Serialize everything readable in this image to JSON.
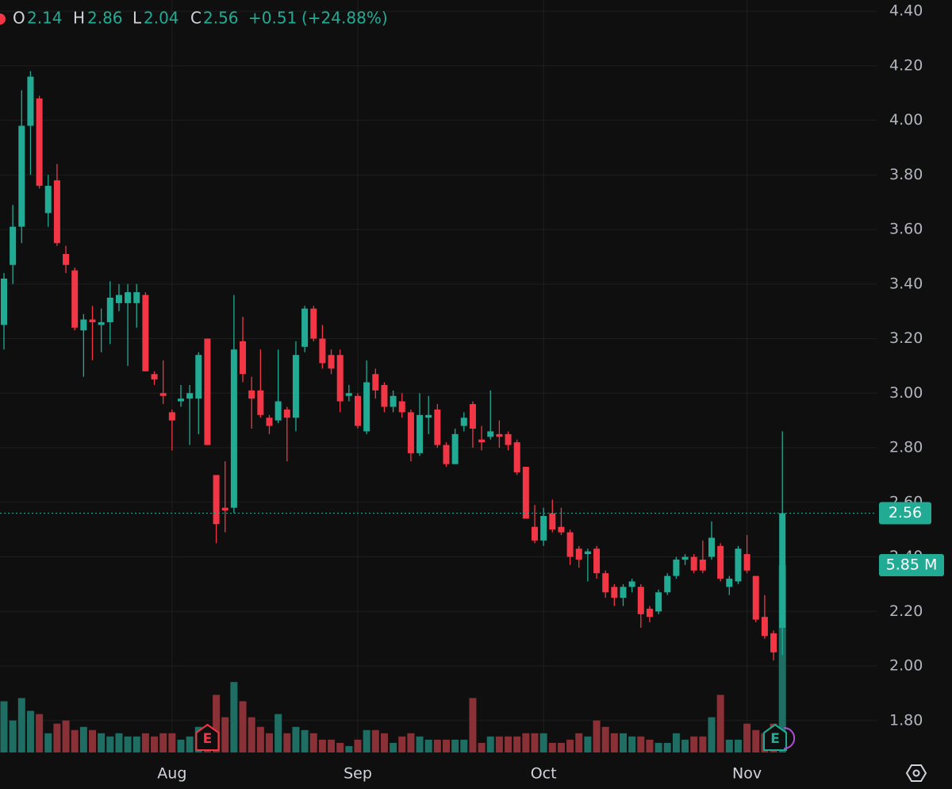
{
  "chart_data": {
    "type": "candlestick",
    "header": {
      "ohlc": [
        {
          "label": "O",
          "value": 2.14
        },
        {
          "label": "H",
          "value": 2.86
        },
        {
          "label": "L",
          "value": 2.04
        },
        {
          "label": "C",
          "value": 2.56
        }
      ],
      "change": {
        "value": 0.51,
        "label": "+0.51"
      },
      "change_pct": {
        "value": 24.88,
        "label": "(+24.88%)"
      }
    },
    "categories": [
      null,
      null,
      null,
      null,
      null,
      null,
      null,
      null,
      null,
      null,
      null,
      null,
      null,
      null,
      null,
      null,
      null,
      null,
      null,
      "Aug",
      null,
      null,
      null,
      null,
      null,
      null,
      null,
      null,
      null,
      null,
      null,
      null,
      null,
      null,
      null,
      null,
      null,
      null,
      null,
      null,
      "Sep",
      null,
      null,
      null,
      null,
      null,
      null,
      null,
      null,
      null,
      null,
      null,
      null,
      null,
      null,
      null,
      null,
      null,
      null,
      null,
      null,
      "Oct",
      null,
      null,
      null,
      null,
      null,
      null,
      null,
      null,
      null,
      null,
      null,
      null,
      null,
      null,
      null,
      null,
      null,
      null,
      null,
      null,
      null,
      null,
      "Nov",
      null,
      null,
      null,
      null
    ],
    "open": [
      3.25,
      3.47,
      3.61,
      3.98,
      4.08,
      3.66,
      3.78,
      3.51,
      3.45,
      3.23,
      3.27,
      3.25,
      3.26,
      3.33,
      3.33,
      3.33,
      3.36,
      3.07,
      3.0,
      2.93,
      2.97,
      2.98,
      2.98,
      3.2,
      2.7,
      2.58,
      2.58,
      3.19,
      3.01,
      3.01,
      2.91,
      2.9,
      2.94,
      2.91,
      3.17,
      3.31,
      3.2,
      3.14,
      3.14,
      2.99,
      2.99,
      2.86,
      3.07,
      3.03,
      2.95,
      2.97,
      2.93,
      2.78,
      2.91,
      2.94,
      2.81,
      2.74,
      2.88,
      2.96,
      2.83,
      2.84,
      2.85,
      2.85,
      2.82,
      2.73,
      2.51,
      2.46,
      2.56,
      2.51,
      2.49,
      2.43,
      2.41,
      2.43,
      2.34,
      2.29,
      2.25,
      2.29,
      2.29,
      2.21,
      2.2,
      2.27,
      2.33,
      2.39,
      2.4,
      2.39,
      2.4,
      2.44,
      2.29,
      2.31,
      2.41,
      2.33,
      2.18,
      2.12,
      2.14
    ],
    "high": [
      3.44,
      3.69,
      4.11,
      4.18,
      4.09,
      3.8,
      3.84,
      3.54,
      3.46,
      3.29,
      3.32,
      3.31,
      3.41,
      3.4,
      3.4,
      3.4,
      3.37,
      3.08,
      3.12,
      2.94,
      3.03,
      3.03,
      3.15,
      3.2,
      2.7,
      2.75,
      3.36,
      3.28,
      3.06,
      3.16,
      2.92,
      3.16,
      2.95,
      3.19,
      3.32,
      3.32,
      3.25,
      3.16,
      3.16,
      3.03,
      3.0,
      3.12,
      3.09,
      3.04,
      3.01,
      3.0,
      2.94,
      3.0,
      2.99,
      2.96,
      2.82,
      2.87,
      2.93,
      2.97,
      2.88,
      3.01,
      2.9,
      2.86,
      2.83,
      2.73,
      2.59,
      2.58,
      2.61,
      2.58,
      2.5,
      2.44,
      2.43,
      2.44,
      2.35,
      2.3,
      2.3,
      2.32,
      2.3,
      2.22,
      2.28,
      2.34,
      2.4,
      2.41,
      2.41,
      2.46,
      2.53,
      2.45,
      2.33,
      2.44,
      2.48,
      2.33,
      2.26,
      2.13,
      2.86
    ],
    "low": [
      3.16,
      3.4,
      3.55,
      3.8,
      3.75,
      3.61,
      3.54,
      3.44,
      3.23,
      3.06,
      3.12,
      3.15,
      3.18,
      3.3,
      3.1,
      3.24,
      3.08,
      3.03,
      2.96,
      2.79,
      2.95,
      2.81,
      2.85,
      2.81,
      2.45,
      2.49,
      2.56,
      3.04,
      2.87,
      2.91,
      2.85,
      2.89,
      2.75,
      2.86,
      3.15,
      3.19,
      3.09,
      3.07,
      2.93,
      2.97,
      2.87,
      2.85,
      2.98,
      2.93,
      2.93,
      2.91,
      2.75,
      2.77,
      2.85,
      2.8,
      2.73,
      2.74,
      2.86,
      2.8,
      2.79,
      2.83,
      2.8,
      2.79,
      2.7,
      2.54,
      2.45,
      2.44,
      2.49,
      2.48,
      2.37,
      2.36,
      2.31,
      2.32,
      2.25,
      2.22,
      2.22,
      2.27,
      2.14,
      2.16,
      2.19,
      2.26,
      2.32,
      2.37,
      2.34,
      2.34,
      2.39,
      2.31,
      2.26,
      2.3,
      2.34,
      2.16,
      2.1,
      2.02,
      2.04
    ],
    "close": [
      3.42,
      3.61,
      3.98,
      4.16,
      3.76,
      3.76,
      3.55,
      3.47,
      3.24,
      3.27,
      3.26,
      3.26,
      3.35,
      3.36,
      3.37,
      3.37,
      3.08,
      3.05,
      2.99,
      2.9,
      2.98,
      3.0,
      3.14,
      2.81,
      2.52,
      2.57,
      3.16,
      3.07,
      2.98,
      2.92,
      2.88,
      2.97,
      2.91,
      3.14,
      3.31,
      3.2,
      3.11,
      3.09,
      2.97,
      3.0,
      2.88,
      3.04,
      3.01,
      2.95,
      2.99,
      2.93,
      2.78,
      2.92,
      2.92,
      2.81,
      2.74,
      2.85,
      2.91,
      2.87,
      2.82,
      2.86,
      2.84,
      2.81,
      2.71,
      2.54,
      2.46,
      2.55,
      2.5,
      2.49,
      2.4,
      2.39,
      2.42,
      2.34,
      2.27,
      2.25,
      2.29,
      2.31,
      2.19,
      2.18,
      2.27,
      2.33,
      2.39,
      2.4,
      2.35,
      2.35,
      2.47,
      2.32,
      2.32,
      2.43,
      2.35,
      2.17,
      2.11,
      2.05,
      2.56
    ],
    "volume": [
      1.6,
      1.0,
      1.7,
      1.3,
      1.2,
      0.6,
      0.9,
      1.0,
      0.7,
      0.8,
      0.7,
      0.6,
      0.5,
      0.6,
      0.5,
      0.5,
      0.6,
      0.5,
      0.6,
      0.6,
      0.4,
      0.5,
      0.8,
      0.8,
      1.8,
      1.1,
      2.2,
      1.6,
      1.1,
      0.8,
      0.6,
      1.2,
      0.6,
      0.8,
      0.7,
      0.6,
      0.4,
      0.4,
      0.3,
      0.2,
      0.4,
      0.7,
      0.7,
      0.6,
      0.3,
      0.5,
      0.6,
      0.5,
      0.4,
      0.4,
      0.4,
      0.4,
      0.4,
      1.7,
      0.3,
      0.5,
      0.5,
      0.5,
      0.5,
      0.6,
      0.6,
      0.6,
      0.3,
      0.3,
      0.4,
      0.6,
      0.5,
      1.0,
      0.8,
      0.6,
      0.6,
      0.5,
      0.5,
      0.4,
      0.3,
      0.3,
      0.6,
      0.4,
      0.5,
      0.5,
      1.1,
      1.8,
      0.4,
      0.4,
      0.9,
      0.7,
      0.6,
      0.9,
      5.85
    ],
    "up_color": "#22ab94",
    "down_color": "#f23645",
    "volume_up_color": "#1f6e63",
    "volume_down_color": "#8a3137",
    "ylim": [
      1.683,
      4.441
    ],
    "volume_lim": [
      0,
      23.5
    ],
    "yticks": [
      {
        "value": 1.8,
        "label": "1.80"
      },
      {
        "value": 2.0,
        "label": "2.00"
      },
      {
        "value": 2.2,
        "label": "2.20"
      },
      {
        "value": 2.4,
        "label": "2.40"
      },
      {
        "value": 2.6,
        "label": "2.60"
      },
      {
        "value": 2.8,
        "label": "2.80"
      },
      {
        "value": 3.0,
        "label": "3.00"
      },
      {
        "value": 3.2,
        "label": "3.20"
      },
      {
        "value": 3.4,
        "label": "3.40"
      },
      {
        "value": 3.6,
        "label": "3.60"
      },
      {
        "value": 3.8,
        "label": "3.80"
      },
      {
        "value": 4.0,
        "label": "4.00"
      },
      {
        "value": 4.2,
        "label": "4.20"
      },
      {
        "value": 4.4,
        "label": "4.40"
      }
    ],
    "grid": true,
    "last_price": 2.56,
    "last_volume": {
      "value": 5.85,
      "label": "5.85 M"
    },
    "events": [
      "E",
      "E"
    ]
  }
}
